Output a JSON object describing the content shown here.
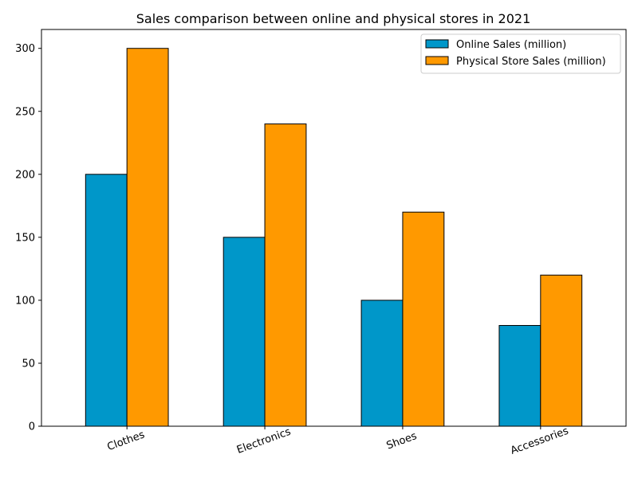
{
  "chart_data": {
    "type": "bar",
    "title": "Sales comparison between online and physical stores in 2021",
    "xlabel": "",
    "ylabel": "",
    "categories": [
      "Clothes",
      "Electronics",
      "Shoes",
      "Accessories"
    ],
    "series": [
      {
        "name": "Online Sales (million)",
        "values": [
          200,
          150,
          100,
          80
        ],
        "color": "#0097c9"
      },
      {
        "name": "Physical Store Sales (million)",
        "values": [
          300,
          240,
          170,
          120
        ],
        "color": "#ff9900"
      }
    ],
    "ylim": [
      0,
      315
    ],
    "yticks": [
      0,
      50,
      100,
      150,
      200,
      250,
      300
    ],
    "grid": false,
    "legend_position": "top-right"
  }
}
